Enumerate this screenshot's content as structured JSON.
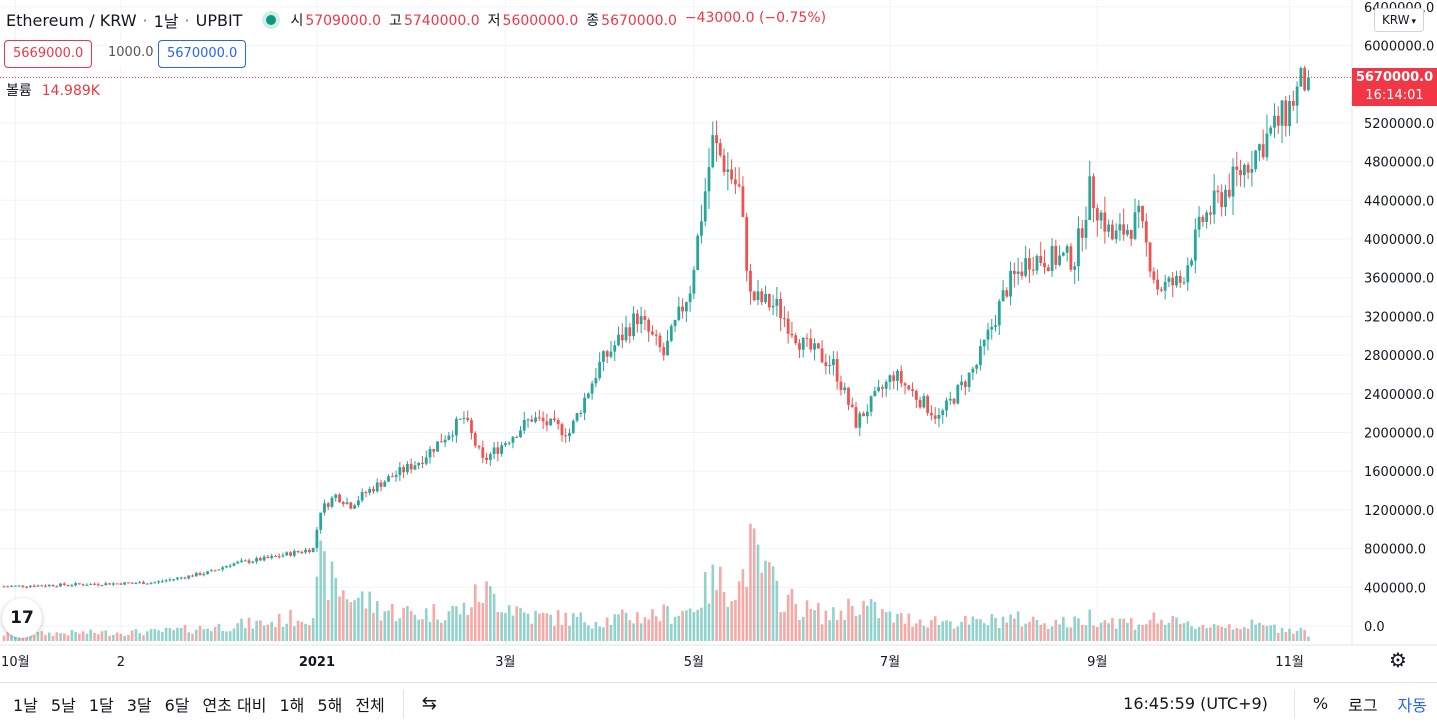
{
  "header": {
    "symbol": "Ethereum / KRW",
    "interval": "1날",
    "exchange": "UPBIT",
    "status_color": "#089981",
    "ohlc": [
      {
        "label": "시",
        "value": "5709000.0"
      },
      {
        "label": "고",
        "value": "5740000.0"
      },
      {
        "label": "저",
        "value": "5600000.0"
      },
      {
        "label": "종",
        "value": "5670000.0"
      }
    ],
    "change": "−43000.0 (−0.75%)"
  },
  "quote": {
    "sell": "5669000.0",
    "spread": "1000.0",
    "buy": "5670000.0"
  },
  "volume_legend": {
    "label": "볼륨",
    "value": "14.989K"
  },
  "currency_dropdown": "KRW",
  "last_price_tag": {
    "price": "5670000.0",
    "countdown": "16:14:01",
    "color": "#f23645"
  },
  "tv_logo": "17",
  "toolbar": {
    "ranges": [
      "1날",
      "5날",
      "1달",
      "3달",
      "6달",
      "연초 대비",
      "1해",
      "5해",
      "전체"
    ],
    "calendar_icon": "calendar-icon",
    "clock": "16:45:59 (UTC+9)",
    "percent": "%",
    "log": "로그",
    "auto": "자동"
  },
  "chart_data": {
    "type": "candlestick",
    "title": "",
    "up_color": "#26a69a",
    "down_color": "#ef5350",
    "y_ticks": [
      "6400000.0",
      "6000000.0",
      "5200000.0",
      "4800000.0",
      "4400000.0",
      "4000000.0",
      "3600000.0",
      "3200000.0",
      "2800000.0",
      "2400000.0",
      "2000000.0",
      "1600000.0",
      "1200000.0",
      "800000.0",
      "400000.0",
      "0.0"
    ],
    "ylim": [
      0,
      6400000
    ],
    "x_ticks": [
      "10월",
      "2",
      "2021",
      "3월",
      "5월",
      "7월",
      "9월",
      "11월"
    ],
    "anchors": [
      {
        "x": 0,
        "price": 410000,
        "vol": 15
      },
      {
        "x": 20,
        "price": 430000,
        "vol": 18
      },
      {
        "x": 40,
        "price": 450000,
        "vol": 20
      },
      {
        "x": 55,
        "price": 560000,
        "vol": 30
      },
      {
        "x": 60,
        "price": 640000,
        "vol": 35
      },
      {
        "x": 70,
        "price": 700000,
        "vol": 40
      },
      {
        "x": 82,
        "price": 800000,
        "vol": 60
      },
      {
        "x": 84,
        "price": 1200000,
        "vol": 160
      },
      {
        "x": 88,
        "price": 1350000,
        "vol": 120
      },
      {
        "x": 92,
        "price": 1250000,
        "vol": 100
      },
      {
        "x": 96,
        "price": 1380000,
        "vol": 90
      },
      {
        "x": 100,
        "price": 1480000,
        "vol": 70
      },
      {
        "x": 110,
        "price": 1700000,
        "vol": 60
      },
      {
        "x": 122,
        "price": 2150000,
        "vol": 70
      },
      {
        "x": 127,
        "price": 1700000,
        "vol": 110
      },
      {
        "x": 140,
        "price": 2150000,
        "vol": 55
      },
      {
        "x": 150,
        "price": 2000000,
        "vol": 50
      },
      {
        "x": 158,
        "price": 2700000,
        "vol": 45
      },
      {
        "x": 168,
        "price": 3200000,
        "vol": 55
      },
      {
        "x": 175,
        "price": 2800000,
        "vol": 60
      },
      {
        "x": 182,
        "price": 3500000,
        "vol": 70
      },
      {
        "x": 188,
        "price": 5000000,
        "vol": 130
      },
      {
        "x": 195,
        "price": 4500000,
        "vol": 120
      },
      {
        "x": 198,
        "price": 3400000,
        "vol": 200
      },
      {
        "x": 205,
        "price": 3300000,
        "vol": 110
      },
      {
        "x": 212,
        "price": 2900000,
        "vol": 70
      },
      {
        "x": 220,
        "price": 2700000,
        "vol": 55
      },
      {
        "x": 226,
        "price": 2100000,
        "vol": 85
      },
      {
        "x": 236,
        "price": 2600000,
        "vol": 50
      },
      {
        "x": 248,
        "price": 2150000,
        "vol": 45
      },
      {
        "x": 258,
        "price": 2700000,
        "vol": 40
      },
      {
        "x": 266,
        "price": 3500000,
        "vol": 50
      },
      {
        "x": 272,
        "price": 3800000,
        "vol": 45
      },
      {
        "x": 284,
        "price": 3800000,
        "vol": 40
      },
      {
        "x": 288,
        "price": 4500000,
        "vol": 55
      },
      {
        "x": 294,
        "price": 4000000,
        "vol": 45
      },
      {
        "x": 301,
        "price": 4200000,
        "vol": 40
      },
      {
        "x": 306,
        "price": 3500000,
        "vol": 50
      },
      {
        "x": 312,
        "price": 3550000,
        "vol": 35
      },
      {
        "x": 318,
        "price": 4200000,
        "vol": 35
      },
      {
        "x": 330,
        "price": 4800000,
        "vol": 35
      },
      {
        "x": 336,
        "price": 5100000,
        "vol": 30
      },
      {
        "x": 340,
        "price": 5300000,
        "vol": 28
      },
      {
        "x": 344,
        "price": 5600000,
        "vol": 25
      },
      {
        "x": 346,
        "price": 5670000,
        "vol": 15
      }
    ]
  }
}
